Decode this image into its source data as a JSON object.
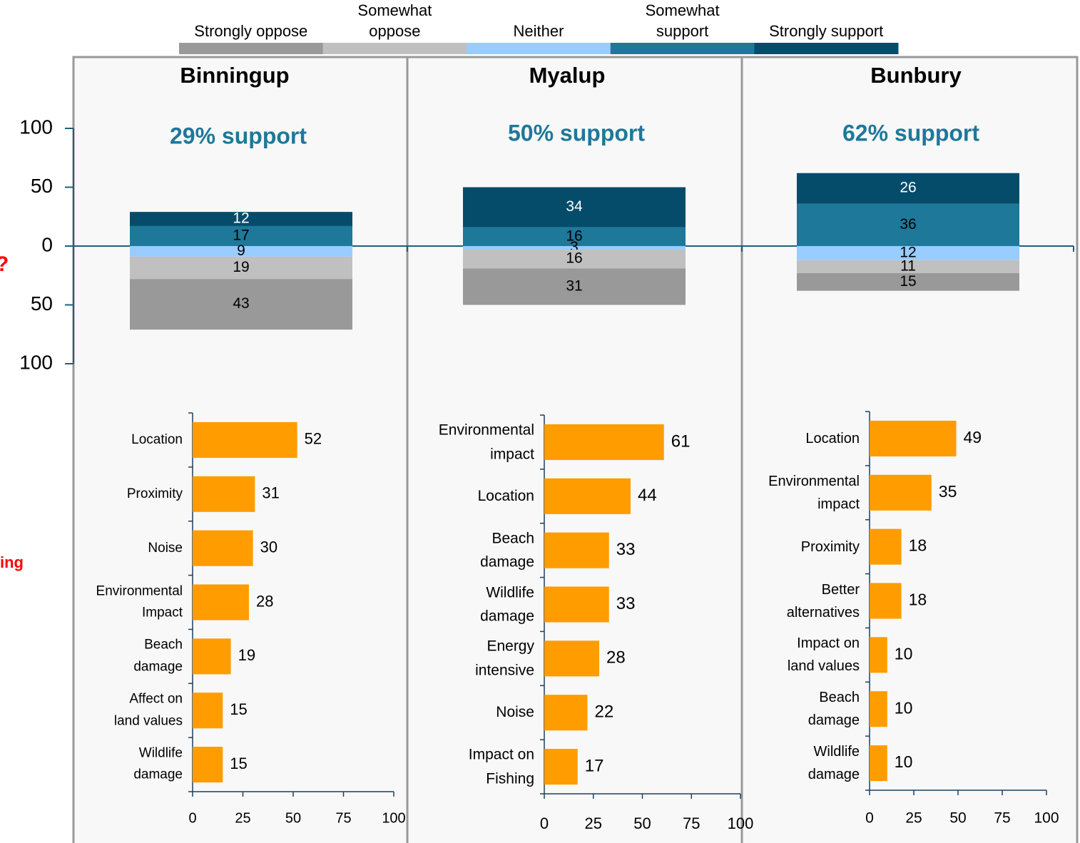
{
  "page_notes": [
    "?",
    "ing"
  ],
  "chart_data": [
    {
      "type": "diverging-bar",
      "categories": [
        "Binningup",
        "Myalup",
        "Bunbury"
      ],
      "annotations": [
        "29% support",
        "50% support",
        "62% support"
      ],
      "series": [
        {
          "name": "Strongly oppose",
          "color": "#999999",
          "stack": "down",
          "values": [
            43,
            31,
            15
          ]
        },
        {
          "name": "Somewhat\noppose",
          "color": "#c0c0c0",
          "stack": "down",
          "values": [
            19,
            16,
            11
          ]
        },
        {
          "name": "Neither",
          "color": "#99ccff",
          "stack": "down",
          "values": [
            9,
            3,
            12
          ]
        },
        {
          "name": "Somewhat\nsupport",
          "color": "#1e7899",
          "stack": "up",
          "values": [
            17,
            16,
            36
          ]
        },
        {
          "name": "Strongly support",
          "color": "#054c6b",
          "stack": "up",
          "values": [
            12,
            34,
            26
          ]
        }
      ],
      "ylim": [
        -100,
        100
      ],
      "yticks": [
        {
          "value": -100,
          "label": "100"
        },
        {
          "value": -50,
          "label": "50"
        },
        0,
        50,
        100
      ]
    },
    {
      "type": "barh",
      "color": "#ff9c00",
      "categories": [
        "Location",
        "Proximity",
        "Noise",
        "Environmental\nImpact",
        "Beach\ndamage",
        "Affect on\nland values",
        "Wildlife\ndamage"
      ],
      "values": [
        52,
        31,
        30,
        28,
        19,
        15,
        15
      ],
      "xlim": [
        0,
        100
      ],
      "xticks": [
        0,
        25,
        50,
        75,
        100
      ]
    },
    {
      "type": "barh",
      "color": "#ff9c00",
      "categories": [
        "Environmental\nimpact",
        "Location",
        "Beach\ndamage",
        "Wildlife\ndamage",
        "Energy\nintensive",
        "Noise",
        "Impact on\nFishing"
      ],
      "values": [
        61,
        44,
        33,
        33,
        28,
        22,
        17
      ],
      "xlim": [
        0,
        100
      ],
      "xticks": [
        0,
        25,
        50,
        75,
        100
      ]
    },
    {
      "type": "barh",
      "color": "#ff9c00",
      "categories": [
        "Location",
        "Environmental\nimpact",
        "Proximity",
        "Better\nalternatives",
        "Impact on\nland values",
        "Beach\ndamage",
        "Wildlife\ndamage"
      ],
      "values": [
        49,
        35,
        18,
        18,
        10,
        10,
        10
      ],
      "xlim": [
        0,
        100
      ],
      "xticks": [
        0,
        25,
        50,
        75,
        100
      ]
    }
  ]
}
